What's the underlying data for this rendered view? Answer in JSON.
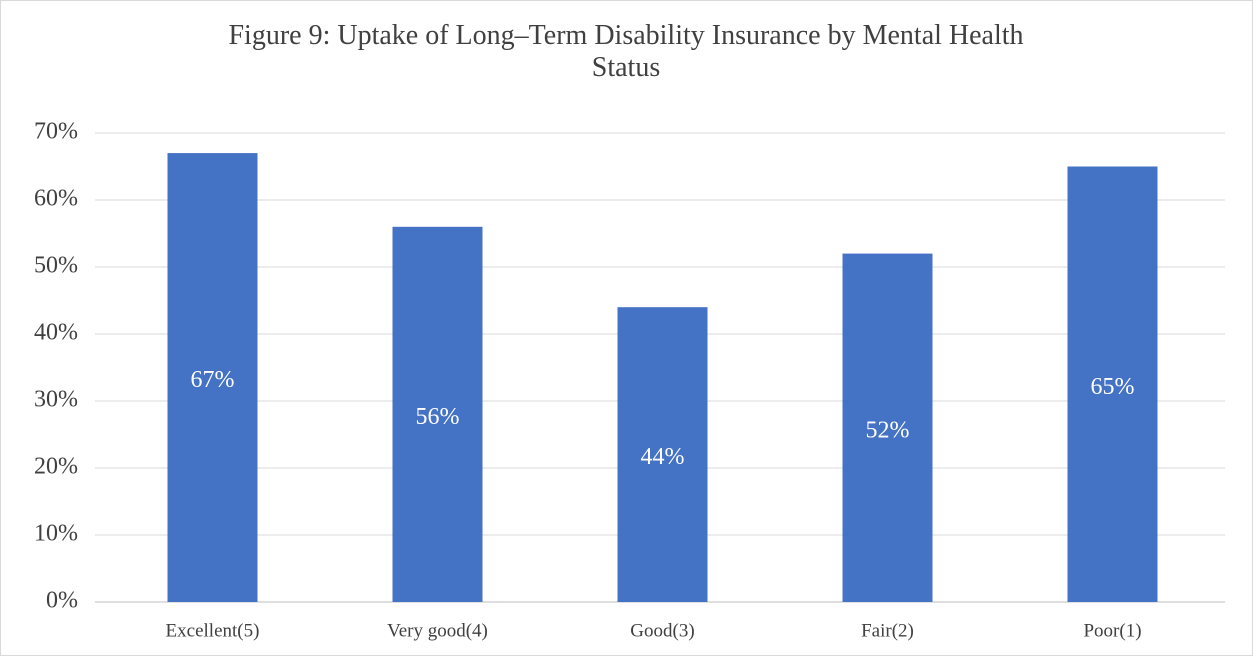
{
  "chart_data": {
    "type": "bar",
    "title": "Figure 9: Uptake of Long–Term Disability Insurance by Mental Health Status",
    "categories": [
      "Excellent(5)",
      "Very good(4)",
      "Good(3)",
      "Fair(2)",
      "Poor(1)"
    ],
    "values": [
      67,
      56,
      44,
      52,
      65
    ],
    "value_labels": [
      "67%",
      "56%",
      "44%",
      "52%",
      "65%"
    ],
    "color": "#4472c4",
    "ylim": [
      0,
      70
    ],
    "yticks": [
      {
        "value": 0,
        "label": "0%"
      },
      {
        "value": 10,
        "label": "10%"
      },
      {
        "value": 20,
        "label": "20%"
      },
      {
        "value": 30,
        "label": "30%"
      },
      {
        "value": 40,
        "label": "40%"
      },
      {
        "value": 50,
        "label": "50%"
      },
      {
        "value": 60,
        "label": "60%"
      },
      {
        "value": 70,
        "label": "70%"
      }
    ],
    "grid": true
  }
}
